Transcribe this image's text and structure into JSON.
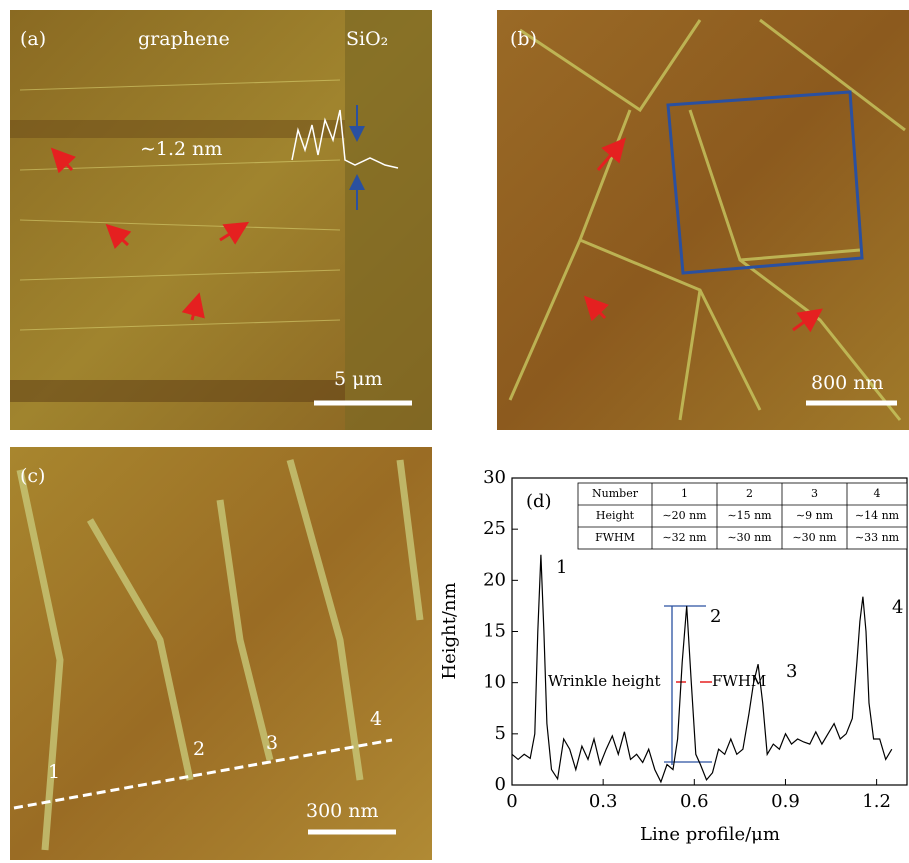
{
  "panels": [
    {
      "label": "(a)",
      "texts": [
        "graphene",
        "SiO₂",
        "∼1.2 nm"
      ],
      "scale": "5 μm"
    },
    {
      "label": "(b)",
      "scale": "800 nm"
    },
    {
      "label": "(c)",
      "texts": [
        "1",
        "2",
        "3",
        "4"
      ],
      "scale": "300 nm"
    }
  ],
  "chart_data": {
    "type": "line",
    "label": "(d)",
    "xlabel": "Line profile/μm",
    "ylabel": "Height/nm",
    "xlim": [
      0,
      1.3
    ],
    "xticks": [
      0,
      0.3,
      0.6,
      0.9,
      1.2
    ],
    "ylim": [
      0,
      30
    ],
    "yticks": [
      0,
      5,
      10,
      15,
      20,
      25,
      30
    ],
    "color": "#000000",
    "x": [
      0,
      0.02,
      0.04,
      0.06,
      0.075,
      0.085,
      0.095,
      0.105,
      0.115,
      0.13,
      0.15,
      0.17,
      0.19,
      0.21,
      0.23,
      0.25,
      0.27,
      0.29,
      0.31,
      0.33,
      0.35,
      0.37,
      0.39,
      0.41,
      0.43,
      0.45,
      0.47,
      0.49,
      0.51,
      0.53,
      0.545,
      0.56,
      0.575,
      0.59,
      0.605,
      0.62,
      0.64,
      0.66,
      0.68,
      0.7,
      0.72,
      0.74,
      0.76,
      0.78,
      0.795,
      0.81,
      0.825,
      0.84,
      0.86,
      0.88,
      0.9,
      0.92,
      0.94,
      0.96,
      0.98,
      1.0,
      1.02,
      1.04,
      1.06,
      1.08,
      1.1,
      1.12,
      1.135,
      1.145,
      1.155,
      1.165,
      1.175,
      1.19,
      1.21,
      1.23,
      1.25
    ],
    "values": [
      3,
      2.5,
      3,
      2.6,
      5,
      15,
      22.5,
      15,
      6,
      1.5,
      0.6,
      4.5,
      3.5,
      1.5,
      3.8,
      2.5,
      4.5,
      2,
      3.5,
      4.8,
      3,
      5.2,
      2.5,
      3,
      2.2,
      3.5,
      1.5,
      0.3,
      2,
      1.5,
      4.5,
      12,
      17.5,
      10,
      3,
      2,
      0.5,
      1.2,
      3.5,
      3,
      4.5,
      3,
      3.5,
      7,
      10,
      11.8,
      8,
      3,
      4,
      3.5,
      5,
      4,
      4.5,
      4.2,
      4,
      5.2,
      4,
      5,
      6,
      4.5,
      5,
      6.5,
      12,
      16,
      18.4,
      15,
      8,
      4.5,
      4.5,
      2.5,
      3.5
    ],
    "peak_labels": [
      "1",
      "2",
      "3",
      "4"
    ],
    "annotations": [
      "Wrinkle height",
      "FWHM"
    ],
    "table": {
      "header": [
        "Number",
        "1",
        "2",
        "3",
        "4"
      ],
      "rows": [
        [
          "Height",
          "∼20 nm",
          "∼15 nm",
          "∼9 nm",
          "∼14 nm"
        ],
        [
          "FWHM",
          "∼32 nm",
          "∼30 nm",
          "∼30 nm",
          "∼33 nm"
        ]
      ]
    }
  }
}
